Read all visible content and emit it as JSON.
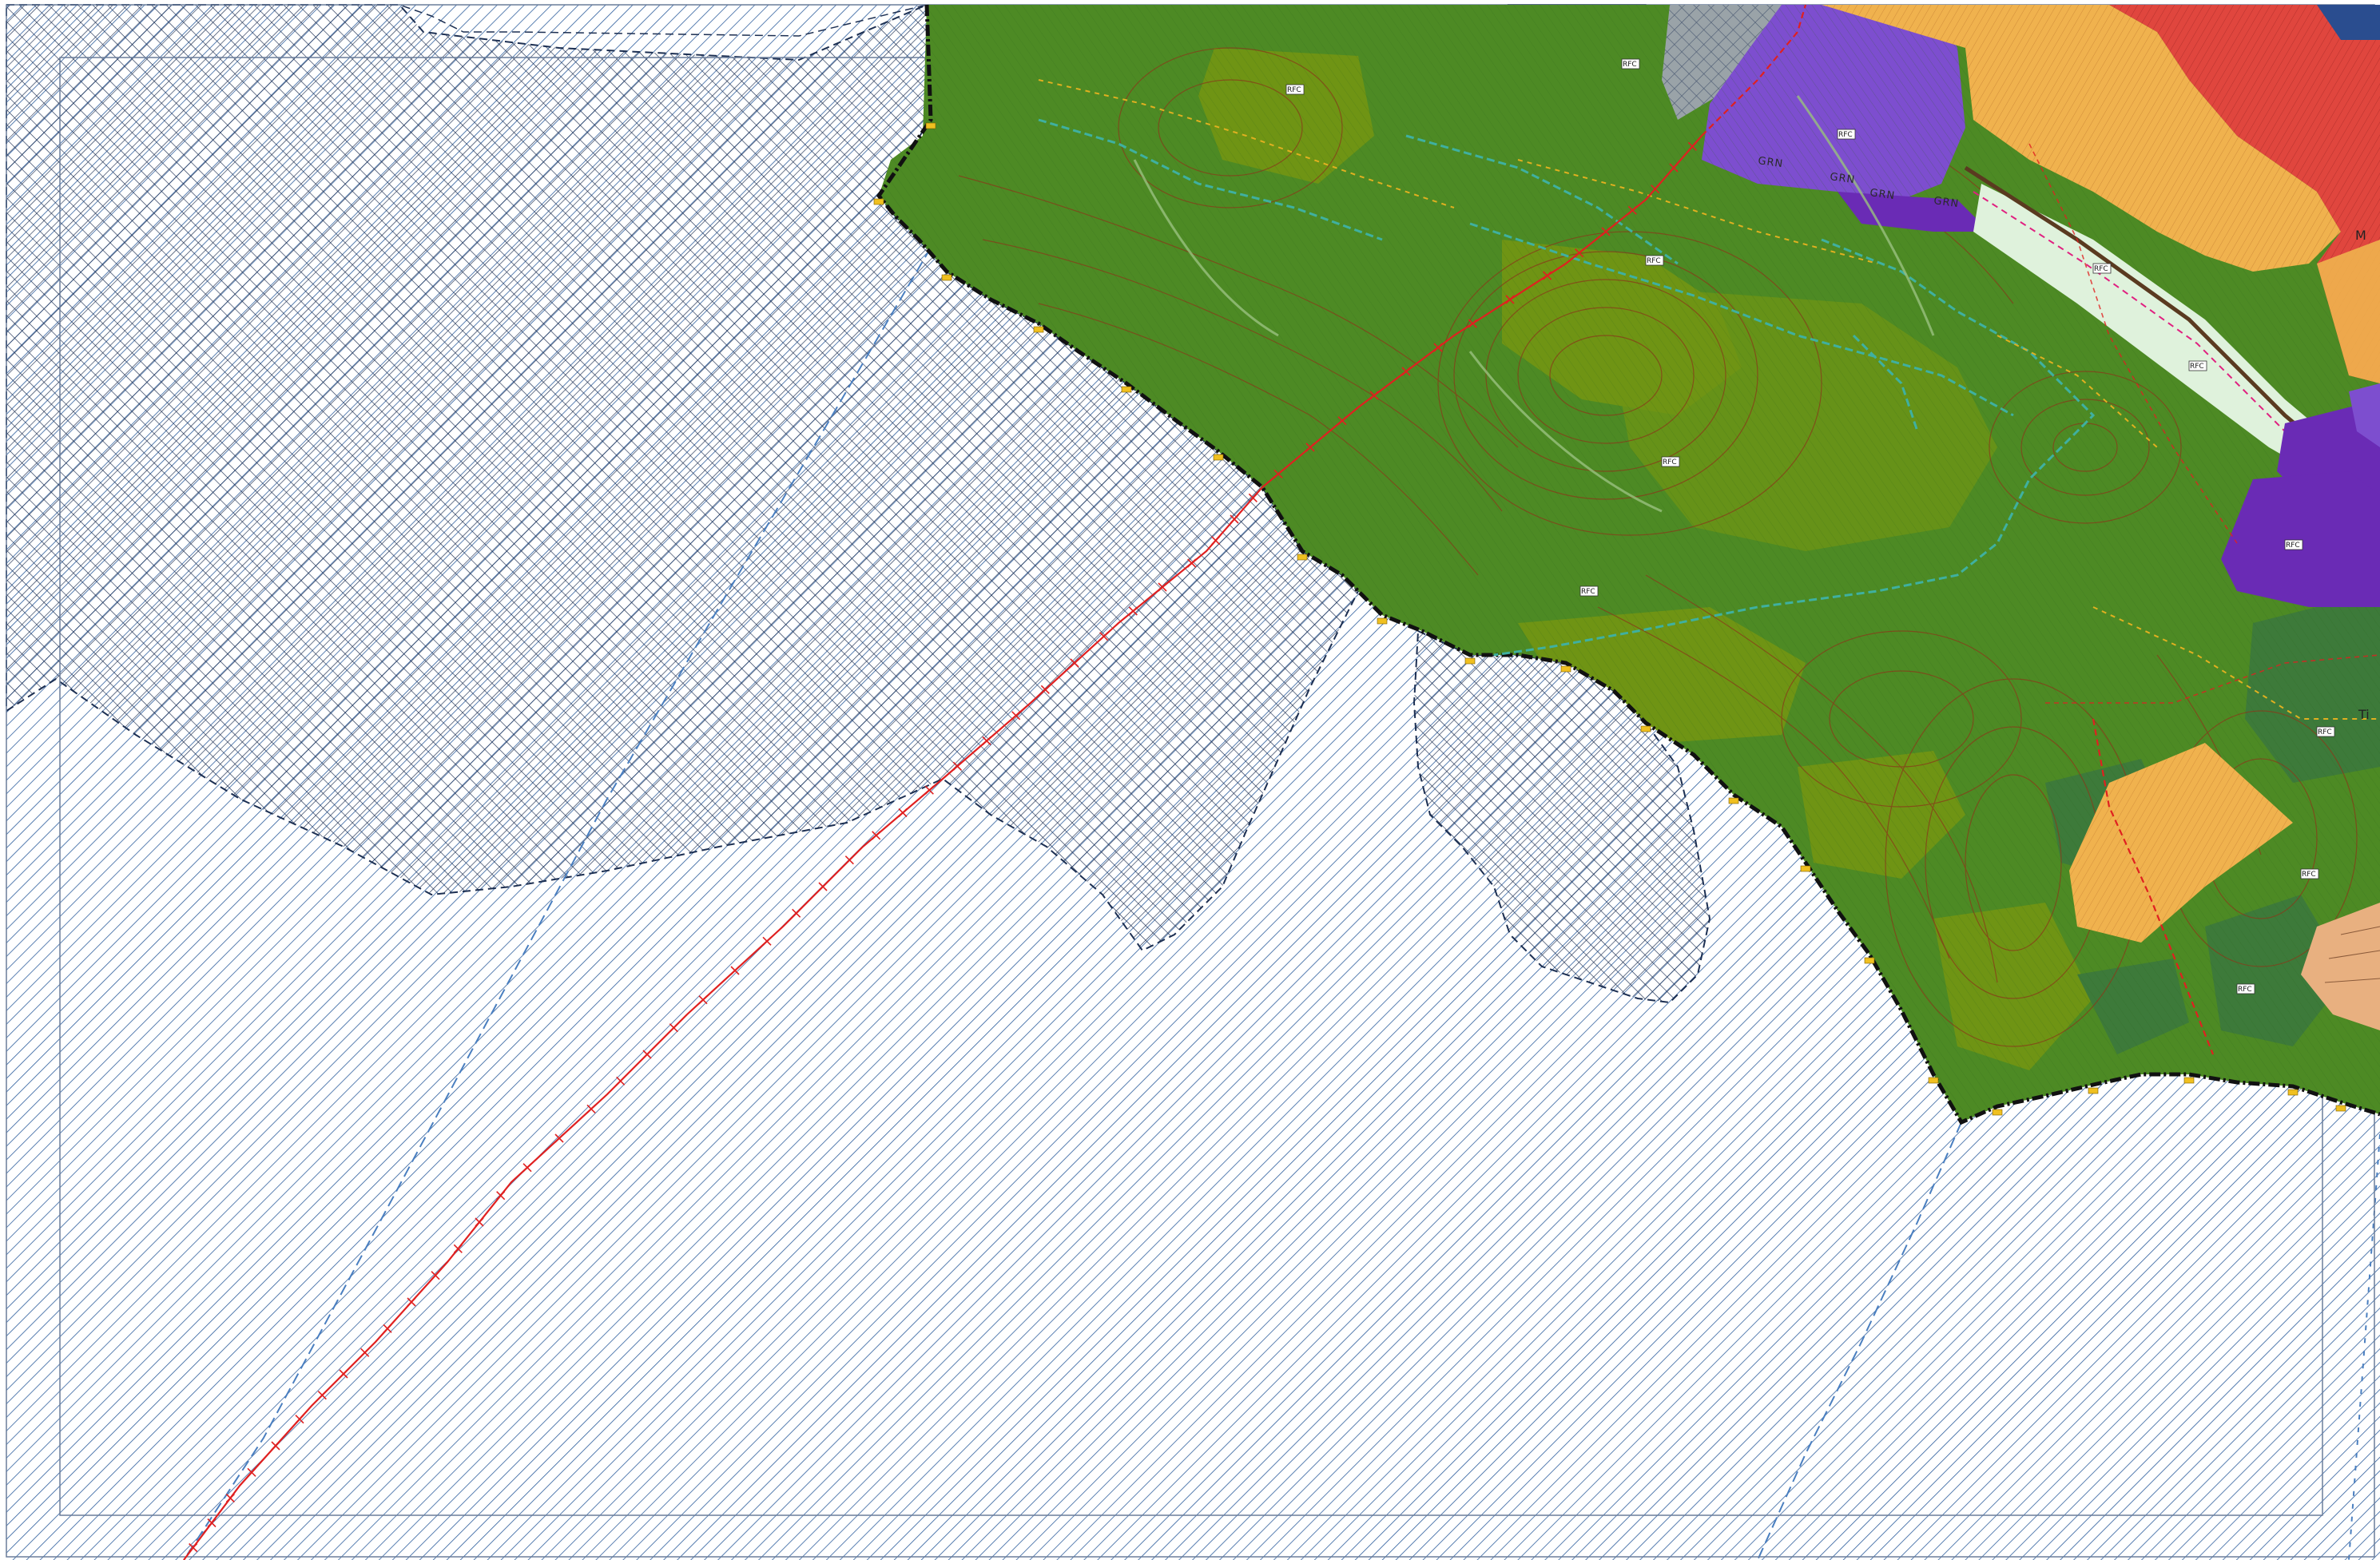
{
  "map": {
    "colors": {
      "forest": "#4d8a24",
      "forest_dark": "#3d7a3a",
      "forest_olive": "#6f9414",
      "purple": "#6a2bb5",
      "purple_light": "#7d4ecf",
      "orange": "#f0b24e",
      "red": "#e0463e",
      "hatch_blue": "#2f5f9e",
      "hatch_dark": "#1c2f52",
      "grey": "#9aa3a8",
      "boundary": "#111111",
      "route_red": "#e02020",
      "stream": "#3fb0a0",
      "contour": "#8a3a1a"
    },
    "labels": {
      "road_1": "GRN",
      "road_2": "GRN",
      "road_3": "GRN",
      "road_4": "GRN",
      "edge_1": "M",
      "edge_2": "Ti"
    },
    "tags": [
      "RFC",
      "RFC",
      "RFC",
      "RFC",
      "RFC",
      "RFC",
      "RFC",
      "RFC",
      "RFC",
      "RFC",
      "RFC",
      "RFC"
    ]
  }
}
